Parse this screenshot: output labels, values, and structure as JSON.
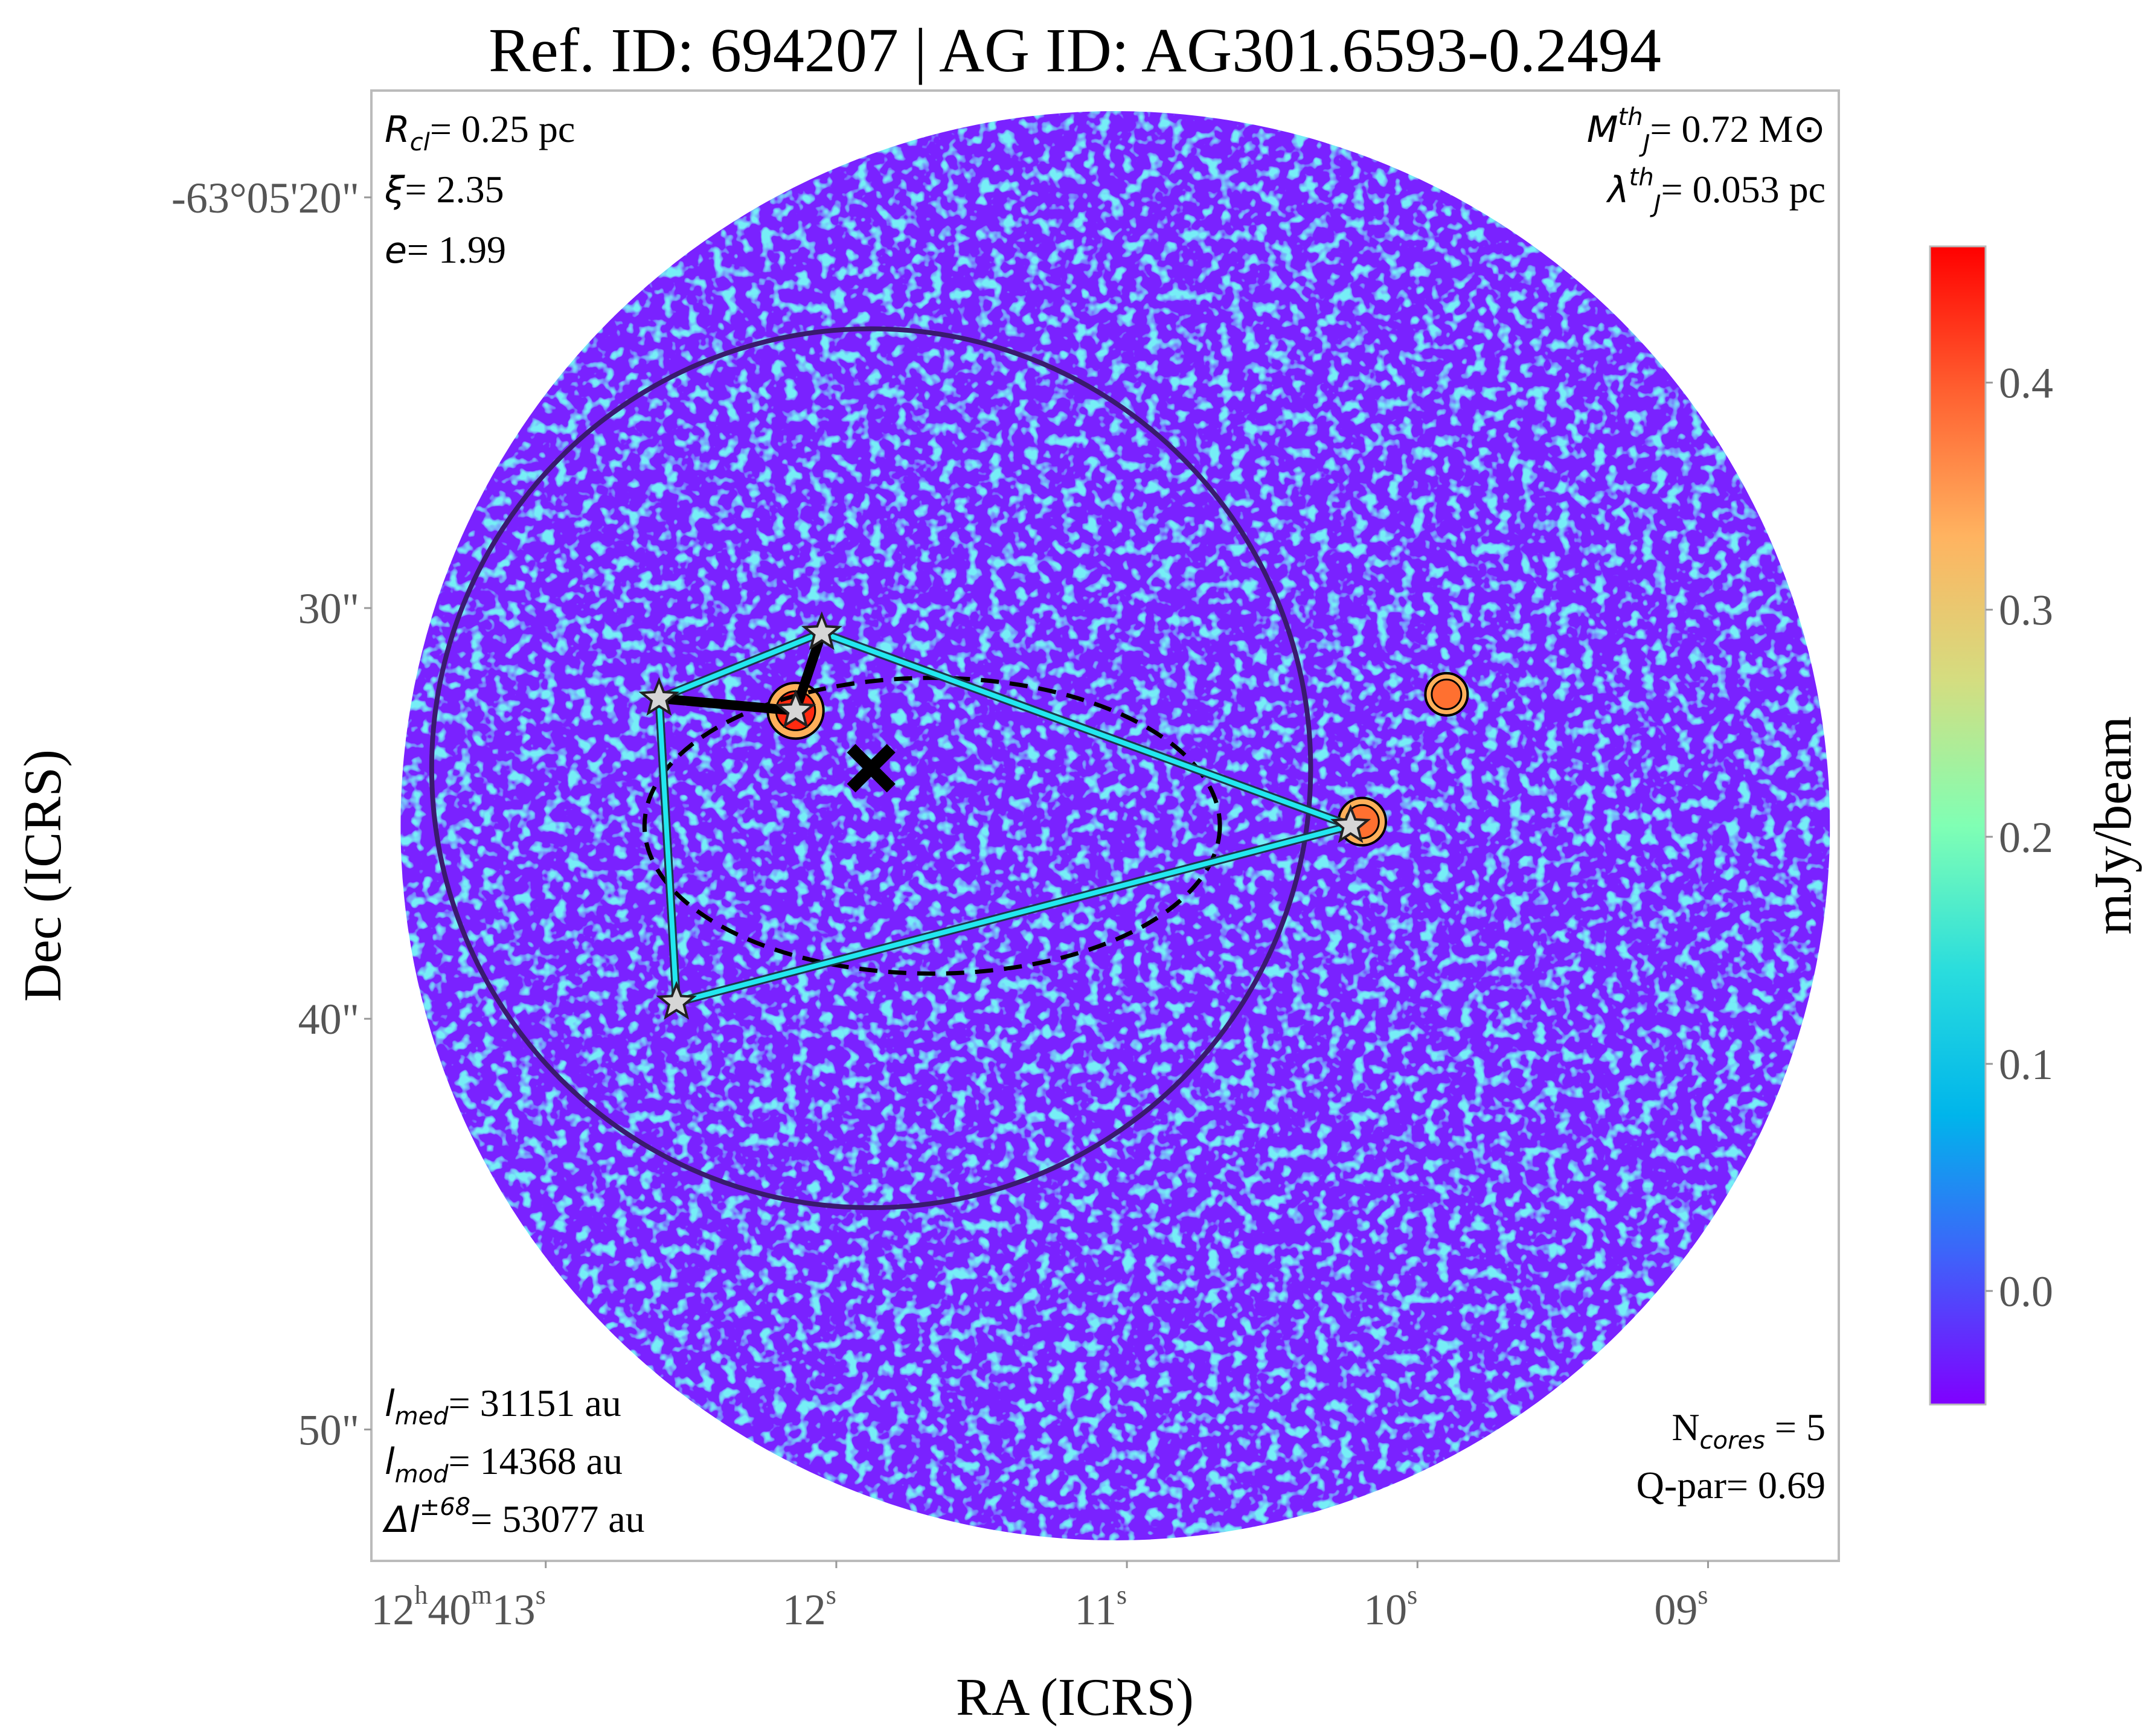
{
  "chart_data": {
    "type": "heatmap",
    "title": "Ref. ID: 694207 | AG ID: AG301.6593-0.2494",
    "xlabel": "RA (ICRS)",
    "ylabel": "Dec (ICRS)",
    "x_ticks": [
      {
        "main": "12",
        "sup_h": "h",
        "mid": "40",
        "sup_m": "m",
        "tail": "13",
        "sup_s": "s",
        "ra_sec": 13
      },
      {
        "main": "12",
        "sup_s": "s",
        "ra_sec": 12
      },
      {
        "main": "11",
        "sup_s": "s",
        "ra_sec": 11
      },
      {
        "main": "10",
        "sup_s": "s",
        "ra_sec": 10
      },
      {
        "main": "09",
        "sup_s": "s",
        "ra_sec": 9
      }
    ],
    "y_ticks": [
      {
        "label": "-63°05'20\"",
        "dec_arcsec": 20
      },
      {
        "label": "30\"",
        "dec_arcsec": 30
      },
      {
        "label": "40\"",
        "dec_arcsec": 40
      },
      {
        "label": "50\"",
        "dec_arcsec": 50
      }
    ],
    "ra_range_s": [
      13.6,
      8.55
    ],
    "dec_range_arcsec": [
      17.4,
      53.2
    ],
    "colorbar": {
      "label": "mJy/beam",
      "range": [
        -0.05,
        0.46
      ],
      "ticks": [
        {
          "label": "0.0",
          "value": 0.0
        },
        {
          "label": "0.1",
          "value": 0.1
        },
        {
          "label": "0.2",
          "value": 0.2
        },
        {
          "label": "0.3",
          "value": 0.3
        },
        {
          "label": "0.4",
          "value": 0.4
        }
      ],
      "colormap": "rainbow",
      "colors": [
        "#8000ff",
        "#4060fa",
        "#00b5eb",
        "#2adddd",
        "#80ffb4",
        "#d4dd80",
        "#ffb360",
        "#ff6030",
        "#ff0000"
      ]
    },
    "annotations": {
      "top_left": [
        {
          "sym": "R",
          "sub": "cl",
          "text": "= 0.25 pc"
        },
        {
          "sym": "ξ",
          "sub": "",
          "text": "= 2.35"
        },
        {
          "sym": "e",
          "sub": "",
          "text": "= 1.99"
        }
      ],
      "top_right": [
        {
          "sym": "M",
          "sup": "th",
          "sub": "J",
          "text": "= 0.72 M",
          "suffix": "⊙"
        },
        {
          "sym": "λ",
          "sup": "th",
          "sub": "J",
          "text": "= 0.053 pc",
          "suffix": ""
        }
      ],
      "bottom_left": [
        {
          "sym": "l",
          "sub": "med",
          "sup": "",
          "text": "= 31151 au"
        },
        {
          "sym": "l",
          "sub": "mod",
          "sup": "",
          "text": "= 14368 au"
        },
        {
          "sym": "Δl",
          "sub": "",
          "sup": "±68",
          "text": "= 53077 au"
        }
      ],
      "bottom_right": [
        {
          "pre": "N",
          "sub": "cores",
          "text": " = 5"
        },
        {
          "pre": "Q-par",
          "sub": "",
          "text": "= 0.69"
        }
      ]
    },
    "cores": [
      {
        "ra_s": 12.61,
        "dec_arcsec": 32.2
      },
      {
        "ra_s": 12.14,
        "dec_arcsec": 32.5
      },
      {
        "ra_s": 12.05,
        "dec_arcsec": 30.6
      },
      {
        "ra_s": 12.55,
        "dec_arcsec": 39.6
      },
      {
        "ra_s": 10.23,
        "dec_arcsec": 35.3
      }
    ],
    "cores_legend": "",
    "mst_edges": [
      [
        0,
        1
      ],
      [
        1,
        2
      ]
    ],
    "hull_edges": [
      [
        2,
        4
      ],
      [
        4,
        3
      ],
      [
        3,
        0
      ],
      [
        0,
        2
      ]
    ],
    "mst_heavy_edges": [
      [
        0,
        1
      ],
      [
        1,
        2
      ]
    ],
    "mst_light_edges": [
      [
        0,
        3
      ],
      [
        2,
        4
      ]
    ],
    "centroid_marker": {
      "ra_s": 11.88,
      "dec_arcsec": 33.9,
      "symbol": "x"
    },
    "clump_circle": {
      "ra_s": 11.88,
      "dec_arcsec": 33.9,
      "radius_arcsec": 10.7
    },
    "fitted_ellipse": {
      "ra_s": 11.67,
      "dec_arcsec": 35.3,
      "semi_major_s": 0.99,
      "semi_minor_arcsec": 3.6
    },
    "field_circle": {
      "ra_s": 11.04,
      "dec_arcsec": 35.3,
      "radius_arcsec": 17.4
    },
    "bright_sources": [
      {
        "ra_s": 12.14,
        "dec_arcsec": 32.5,
        "peak": 0.46
      },
      {
        "ra_s": 10.19,
        "dec_arcsec": 35.2,
        "peak": 0.36
      },
      {
        "ra_s": 9.9,
        "dec_arcsec": 32.1,
        "peak": 0.3
      }
    ],
    "grid": false
  }
}
